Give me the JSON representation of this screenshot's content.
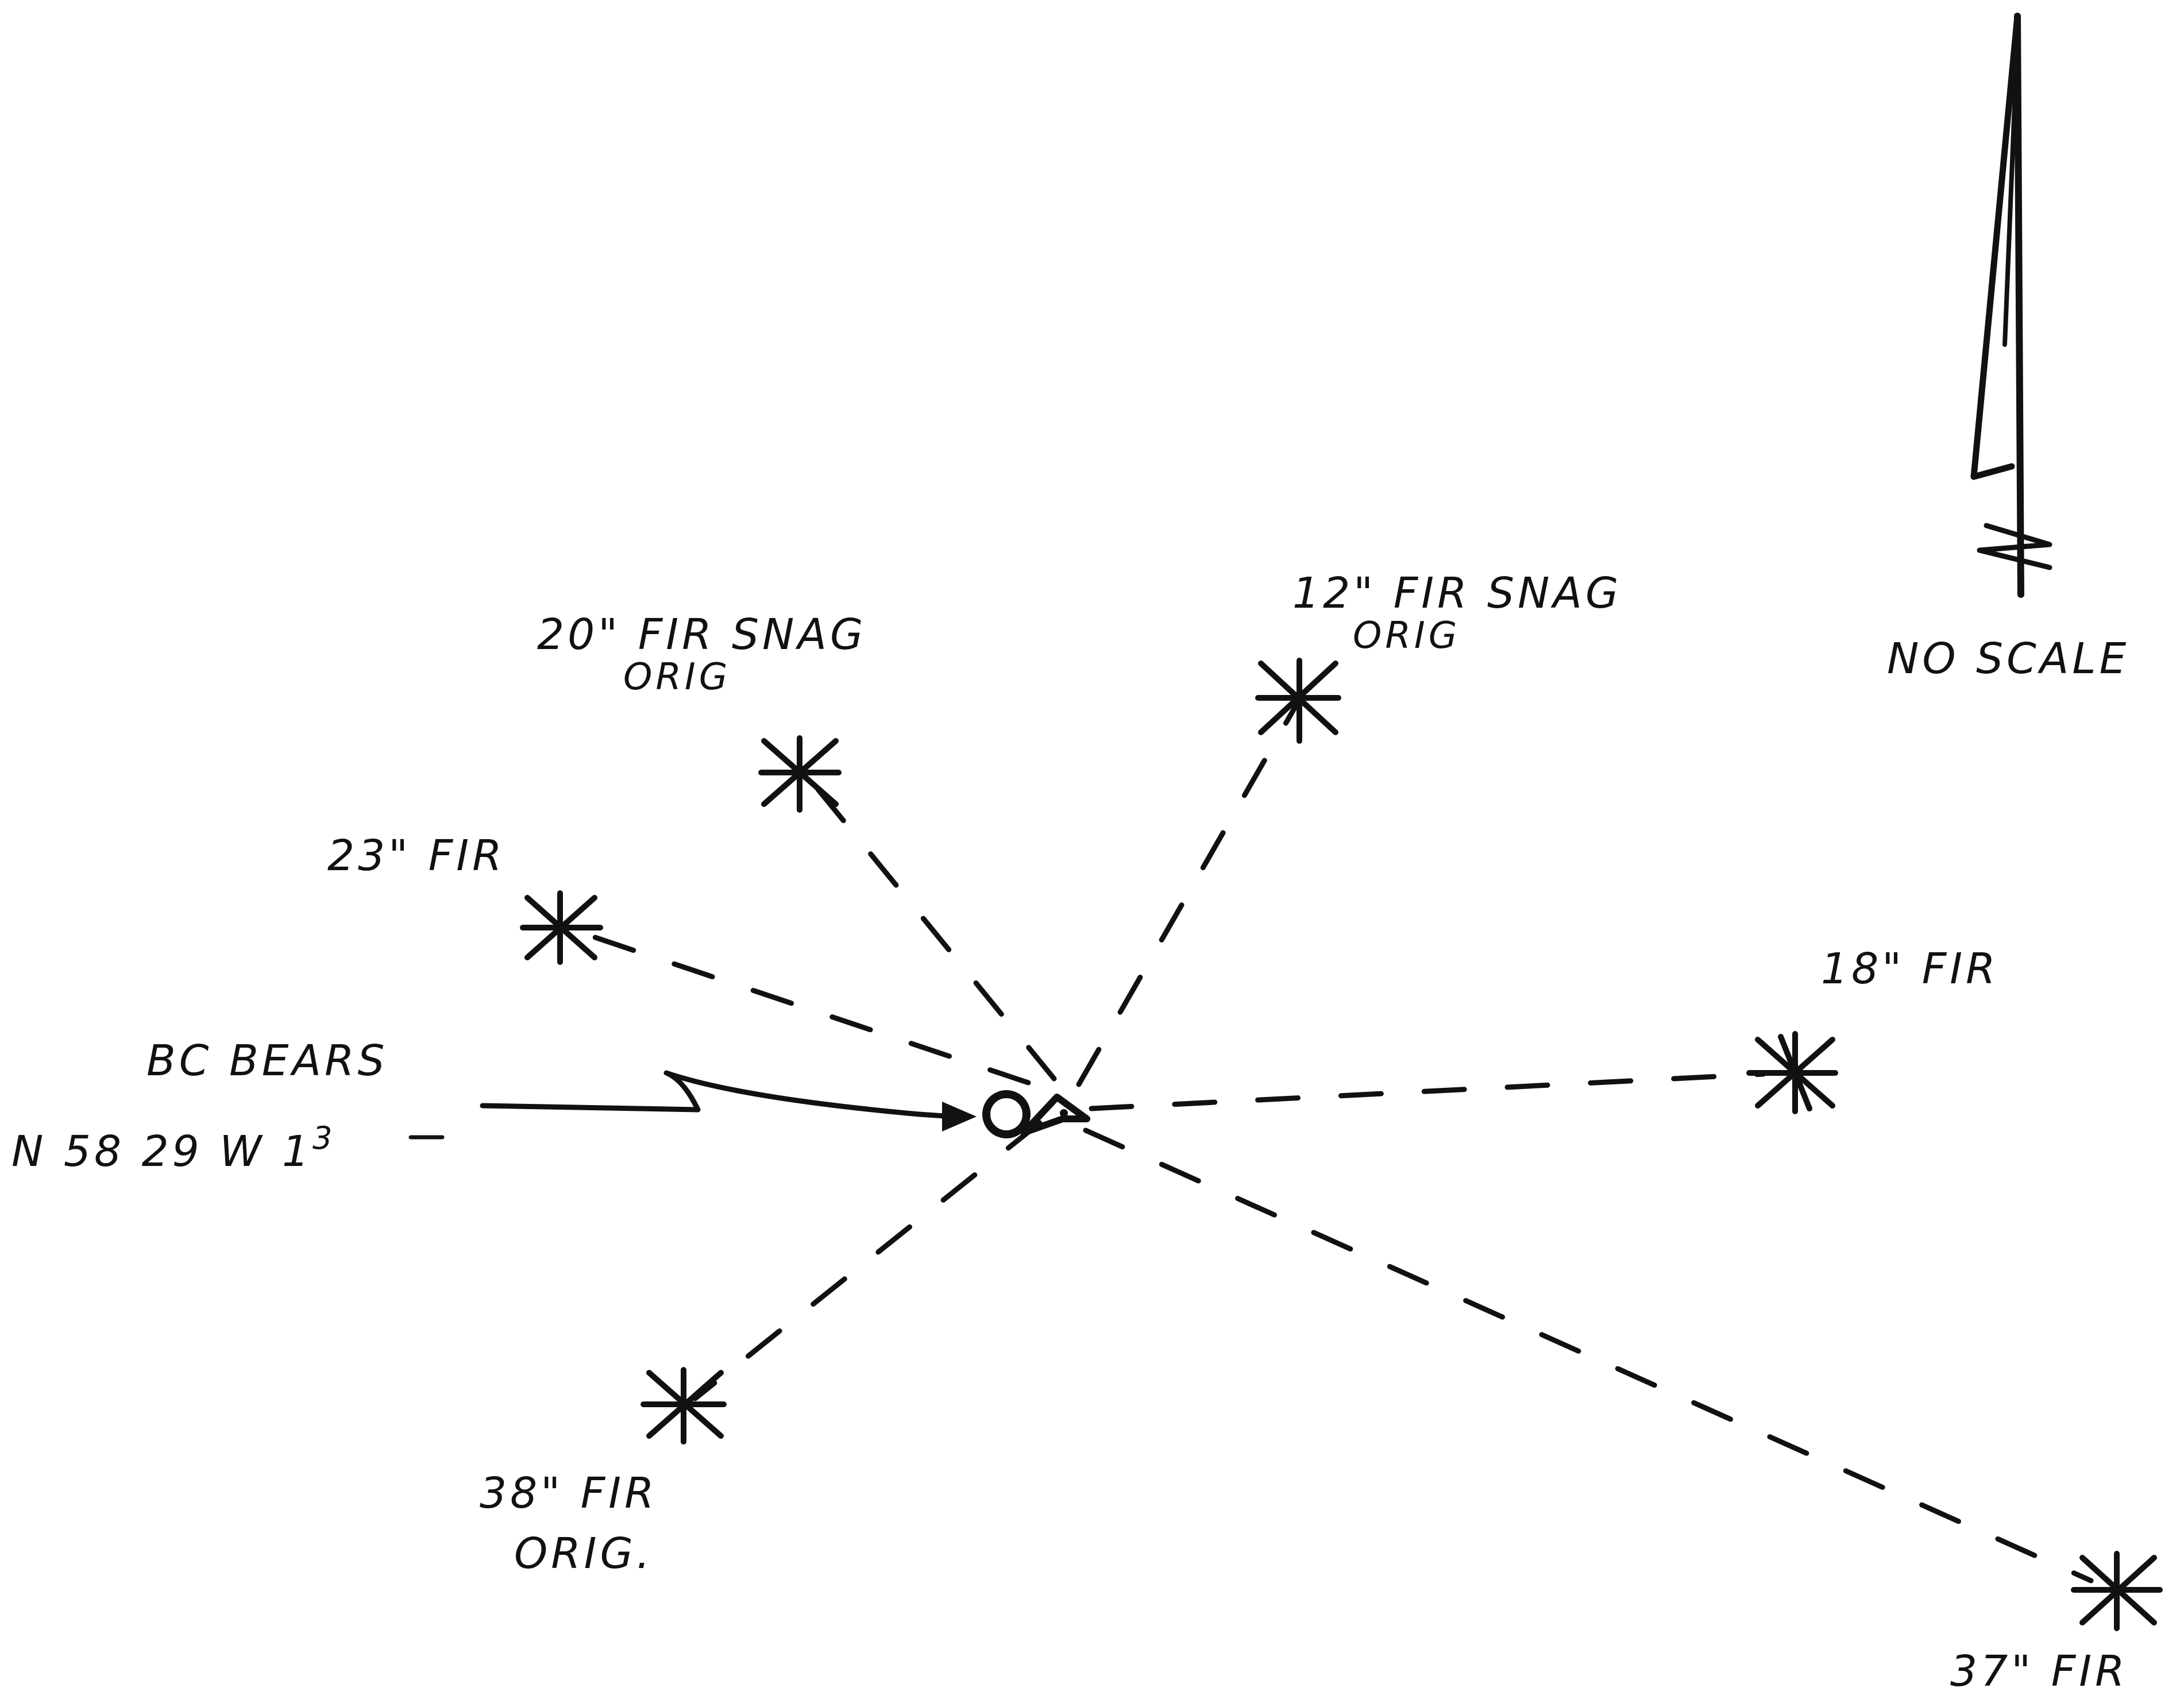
{
  "colors": {
    "ink": "#111111",
    "paper": "#ffffff"
  },
  "north_arrow": {
    "letter": "N",
    "note": "NO SCALE"
  },
  "corner": {
    "bearing_label": "BC BEARS",
    "bearing_value": "N 58 29 W 1",
    "bearing_value_sup": "3"
  },
  "trees": [
    {
      "id": "fir-12",
      "label": "12\" FIR SNAG",
      "sublabel": "ORIG",
      "icon": "tree-star-icon"
    },
    {
      "id": "fir-20",
      "label": "20\" FIR SNAG",
      "sublabel": "ORIG",
      "icon": "tree-star-icon"
    },
    {
      "id": "fir-23",
      "label": "23\" FIR",
      "sublabel": "",
      "icon": "tree-star-icon"
    },
    {
      "id": "fir-18",
      "label": "18\" FIR",
      "sublabel": "",
      "icon": "tree-star-icon"
    },
    {
      "id": "fir-38",
      "label": "38\" FIR",
      "sublabel": "ORIG.",
      "icon": "tree-star-icon"
    },
    {
      "id": "fir-37",
      "label": "37\" FIR",
      "sublabel": "",
      "icon": "tree-star-icon"
    }
  ]
}
